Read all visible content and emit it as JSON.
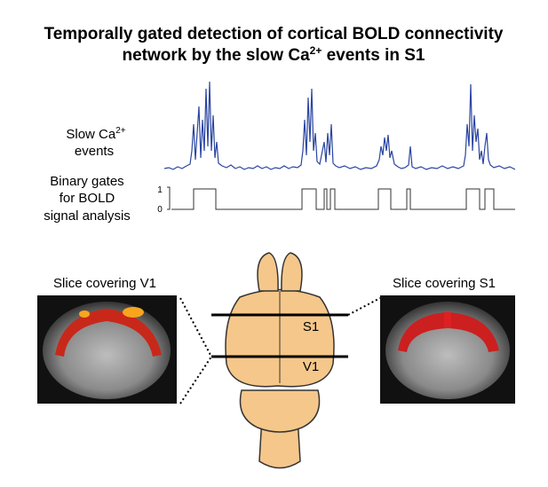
{
  "title": {
    "line1": "Temporally gated detection of cortical BOLD connectivity",
    "line2": {
      "before": "network by the slow Ca",
      "sup": "2+",
      "after": " events in S1"
    }
  },
  "trace_label": {
    "before": "Slow Ca",
    "sup": "2+",
    "line2": "events"
  },
  "gate_label": {
    "lines": [
      "Binary gates",
      "for BOLD",
      "signal analysis"
    ],
    "high": "1",
    "low": "0"
  },
  "slices": {
    "left": "Slice covering V1",
    "right": "Slice covering S1"
  },
  "brain": {
    "upper_line": "S1",
    "lower_line": "V1"
  }
}
